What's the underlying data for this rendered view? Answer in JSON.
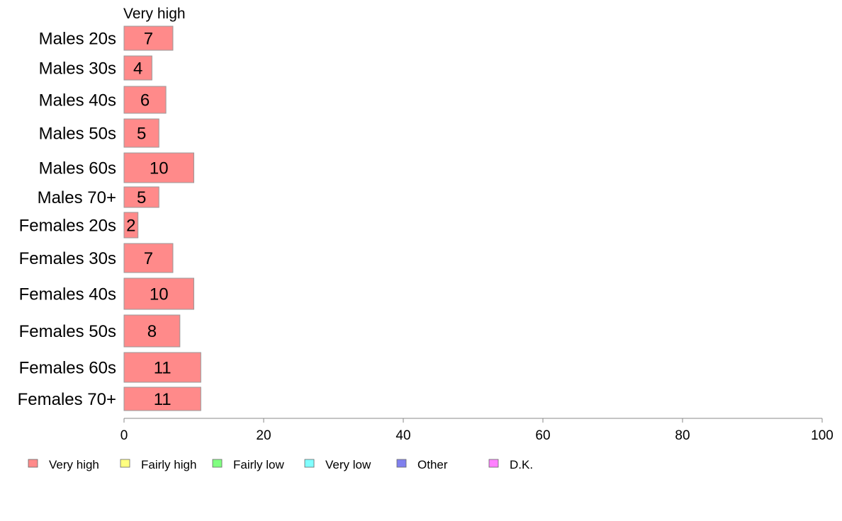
{
  "chart_data": {
    "type": "bar",
    "orientation": "horizontal",
    "stacked": true,
    "categories": [
      "Males 20s",
      "Males 30s",
      "Males 40s",
      "Males 50s",
      "Males 60s",
      "Males 70+",
      "Females 20s",
      "Females 30s",
      "Females 40s",
      "Females 50s",
      "Females 60s",
      "Females 70+"
    ],
    "series": [
      {
        "name": "Very high",
        "values": [
          7,
          4,
          6,
          5,
          10,
          5,
          2,
          7,
          10,
          8,
          11,
          11
        ],
        "color": "#ff8a8a"
      }
    ],
    "series_header": "Very high",
    "xlim": [
      0,
      100
    ],
    "xticks": [
      "0",
      "20",
      "40",
      "60",
      "80",
      "100"
    ],
    "grid": false,
    "legend_position": "bottom",
    "legend": [
      {
        "label": "Very high",
        "color": "#ff8a8a"
      },
      {
        "label": "Fairly high",
        "color": "#ffff80"
      },
      {
        "label": "Fairly low",
        "color": "#80ff80"
      },
      {
        "label": "Very low",
        "color": "#80ffff"
      },
      {
        "label": "Other",
        "color": "#8080ee"
      },
      {
        "label": "D.K.",
        "color": "#ff80ff"
      }
    ],
    "bar_border_color": "#999999",
    "axis_color": "#888888"
  }
}
